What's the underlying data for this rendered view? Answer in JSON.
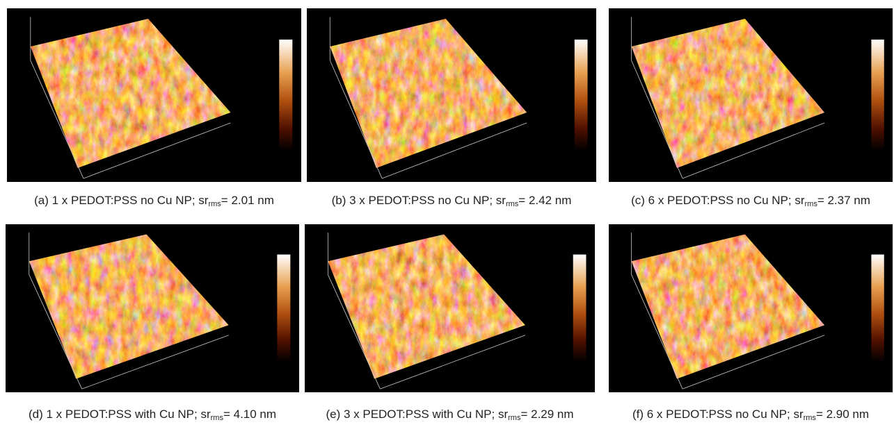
{
  "panels": [
    {
      "caption": {
        "prefix": "(a) 1 x PEDOT:PSS no Cu NP; sr",
        "subscript": "rms",
        "suffix": "= 2.01 nm"
      }
    },
    {
      "caption": {
        "prefix": "(b) 3 x PEDOT:PSS no Cu NP; sr",
        "subscript": "rms",
        "suffix": "= 2.42 nm"
      }
    },
    {
      "caption": {
        "prefix": "(c) 6 x PEDOT:PSS no Cu NP; sr",
        "subscript": "rms",
        "suffix": "= 2.37 nm"
      }
    },
    {
      "caption": {
        "prefix": "(d) 1 x PEDOT:PSS with Cu NP; sr",
        "subscript": "rms",
        "suffix": "= 4.10 nm"
      }
    },
    {
      "caption": {
        "prefix": "(e) 3 x PEDOT:PSS with Cu NP; sr",
        "subscript": "rms",
        "suffix": "= 2.29 nm"
      }
    },
    {
      "caption": {
        "prefix": "(f) 6 x PEDOT:PSS no Cu NP; sr",
        "subscript": "rms",
        "suffix": "= 2.90 nm"
      }
    }
  ]
}
